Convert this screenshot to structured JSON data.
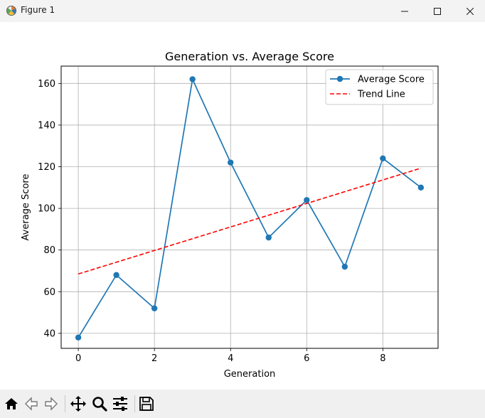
{
  "window": {
    "title": "Figure 1"
  },
  "toolbar": {
    "buttons": [
      "home-icon",
      "back-icon",
      "forward-icon",
      "pan-icon",
      "zoom-icon",
      "configure-icon",
      "save-icon"
    ],
    "coordinates": ""
  },
  "chart_data": {
    "type": "line",
    "title": "Generation vs. Average Score",
    "xlabel": "Generation",
    "ylabel": "Average Score",
    "xlim": [
      -0.45,
      9.45
    ],
    "ylim": [
      32.8,
      168.3
    ],
    "x_ticks": [
      0,
      2,
      4,
      6,
      8
    ],
    "y_ticks": [
      40,
      60,
      80,
      100,
      120,
      140,
      160
    ],
    "grid": true,
    "legend_position": "upper right",
    "series": [
      {
        "name": "Average Score",
        "style": "solid-marker",
        "color": "#1f77b4",
        "x": [
          0,
          1,
          2,
          3,
          4,
          5,
          6,
          7,
          8,
          9
        ],
        "y": [
          38,
          68,
          52,
          162,
          122,
          86,
          104,
          72,
          124,
          110
        ]
      },
      {
        "name": "Trend Line",
        "style": "dashed",
        "color": "#ff0000",
        "x": [
          0,
          9
        ],
        "y": [
          68.5,
          119.3
        ]
      }
    ]
  }
}
